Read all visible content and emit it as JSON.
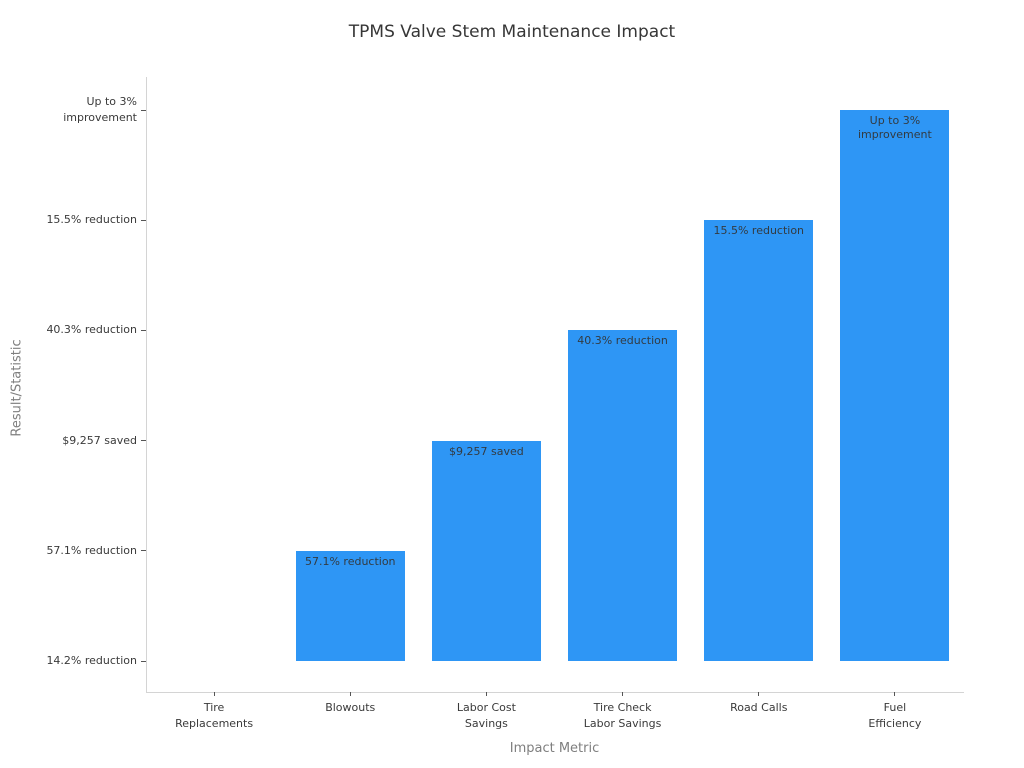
{
  "chart_data": {
    "type": "bar",
    "title": "TPMS Valve Stem Maintenance Impact",
    "xlabel": "Impact Metric",
    "ylabel": "Result/Statistic",
    "categories": [
      "Tire\nReplacements",
      "Blowouts",
      "Labor Cost\nSavings",
      "Tire Check\nLabor Savings",
      "Road Calls",
      "Fuel\nEfficiency"
    ],
    "values": [
      "14.2% reduction",
      "57.1% reduction",
      "$9,257 saved",
      "40.3% reduction",
      "15.5% reduction",
      "Up to 3% improvement"
    ],
    "levels": [
      0,
      1,
      2,
      3,
      4,
      5
    ],
    "y_tick_labels": [
      "14.2% reduction",
      "57.1% reduction",
      "$9,257 saved",
      "40.3% reduction",
      "15.5% reduction",
      "Up to 3%\nimprovement"
    ],
    "bar_annotations": [
      "",
      "57.1% reduction",
      "$9,257 saved",
      "40.3% reduction",
      "15.5% reduction",
      "Up to 3%\nimprovement"
    ],
    "bar_color": "#2E96F5",
    "grid": false,
    "legend_position": "none",
    "ylim_levels": [
      0,
      5
    ]
  }
}
